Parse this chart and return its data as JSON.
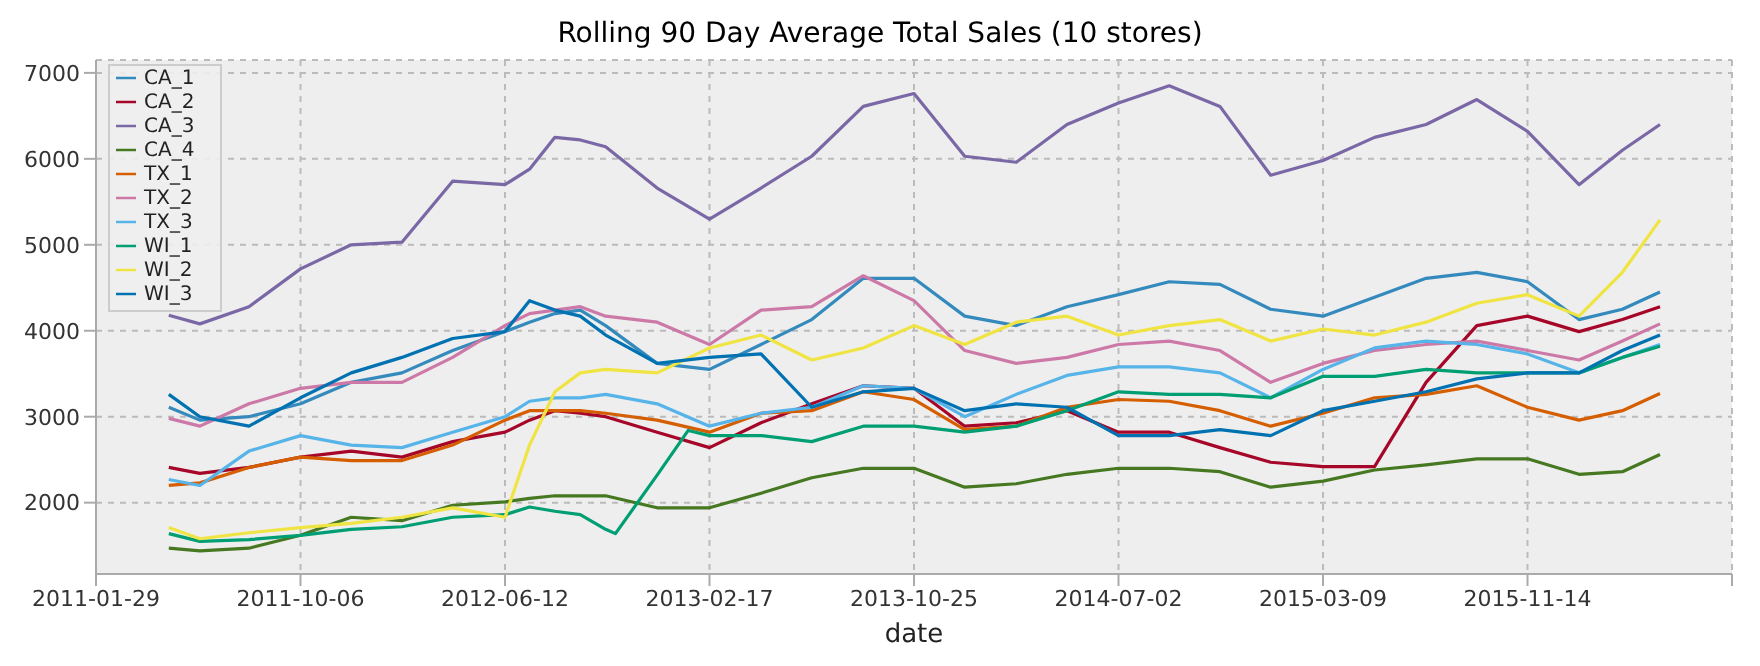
{
  "chart_data": {
    "type": "line",
    "title": "Rolling 90 Day Average Total Sales (10 stores)",
    "xlabel": "date",
    "x": [
      "2011-04-28",
      "2011-06-05",
      "2011-08-04",
      "2011-10-06",
      "2011-12-07",
      "2012-02-07",
      "2012-04-09",
      "2012-06-12",
      "2012-07-12",
      "2012-08-12",
      "2012-09-12",
      "2012-10-13",
      "2012-12-15",
      "2013-02-17",
      "2013-04-21",
      "2013-06-22",
      "2013-08-24",
      "2013-10-25",
      "2013-12-26",
      "2014-02-27",
      "2014-04-30",
      "2014-07-02",
      "2014-09-02",
      "2014-11-03",
      "2015-01-04",
      "2015-03-09",
      "2015-05-11",
      "2015-07-13",
      "2015-09-13",
      "2015-11-14",
      "2016-01-16",
      "2016-03-09",
      "2016-04-24"
    ],
    "series": [
      {
        "name": "CA_1",
        "color": "#348abd",
        "values": [
          3110,
          2960,
          3000,
          3150,
          3400,
          3510,
          3770,
          3990,
          4100,
          4200,
          4240,
          4060,
          3620,
          3550,
          3840,
          4130,
          4610,
          4610,
          4170,
          4060,
          4280,
          4420,
          4570,
          4540,
          4250,
          4170,
          4390,
          4610,
          4680,
          4570,
          4130,
          4250,
          4450
        ]
      },
      {
        "name": "CA_2",
        "color": "#a60628",
        "values": [
          2410,
          2340,
          2410,
          2530,
          2600,
          2530,
          2710,
          2820,
          2960,
          3070,
          3040,
          3000,
          2820,
          2640,
          2930,
          3150,
          3360,
          3330,
          2890,
          2930,
          3070,
          2820,
          2820,
          2640,
          2470,
          2420,
          2420,
          3400,
          4060,
          4170,
          3990,
          4130,
          4280
        ]
      },
      {
        "name": "CA_3",
        "color": "#7a68a6",
        "values": [
          4180,
          4080,
          4280,
          4720,
          5000,
          5030,
          5740,
          5700,
          5880,
          6250,
          6220,
          6140,
          5660,
          5300,
          5660,
          6030,
          6610,
          6760,
          6030,
          5960,
          6400,
          6650,
          6850,
          6610,
          5810,
          5980,
          6250,
          6400,
          6690,
          6320,
          5700,
          6100,
          6400
        ]
      },
      {
        "name": "CA_4",
        "color": "#467821",
        "values": [
          1470,
          1440,
          1470,
          1620,
          1830,
          1790,
          1970,
          2010,
          2050,
          2080,
          2080,
          2080,
          1940,
          1940,
          2110,
          2290,
          2400,
          2400,
          2180,
          2220,
          2330,
          2400,
          2400,
          2360,
          2180,
          2250,
          2380,
          2440,
          2510,
          2510,
          2330,
          2360,
          2560
        ]
      },
      {
        "name": "TX_1",
        "color": "#d55e00",
        "values": [
          2200,
          2230,
          2410,
          2530,
          2490,
          2490,
          2670,
          2960,
          3070,
          3070,
          3070,
          3040,
          2960,
          2820,
          3040,
          3070,
          3290,
          3200,
          2850,
          2890,
          3110,
          3200,
          3180,
          3070,
          2890,
          3040,
          3220,
          3260,
          3360,
          3110,
          2960,
          3070,
          3270
        ]
      },
      {
        "name": "TX_2",
        "color": "#cc79a7",
        "values": [
          2980,
          2890,
          3150,
          3330,
          3400,
          3400,
          3690,
          4060,
          4200,
          4240,
          4280,
          4170,
          4100,
          3840,
          4240,
          4280,
          4640,
          4350,
          3770,
          3620,
          3690,
          3840,
          3880,
          3770,
          3400,
          3620,
          3770,
          3840,
          3880,
          3770,
          3660,
          3880,
          4080
        ]
      },
      {
        "name": "TX_3",
        "color": "#56b4e9",
        "values": [
          2270,
          2200,
          2600,
          2780,
          2670,
          2640,
          2820,
          3000,
          3180,
          3220,
          3220,
          3260,
          3150,
          2890,
          3040,
          3110,
          3360,
          3330,
          3000,
          3260,
          3480,
          3580,
          3580,
          3510,
          3220,
          3550,
          3800,
          3880,
          3840,
          3730,
          3510,
          3690,
          3840
        ]
      },
      {
        "name": "WI_1",
        "color": "#009e73",
        "x": [
          "2011-04-28",
          "2011-06-05",
          "2011-08-04",
          "2011-10-06",
          "2011-12-07",
          "2012-02-07",
          "2012-04-09",
          "2012-06-12",
          "2012-07-12",
          "2012-08-12",
          "2012-09-12",
          "2012-10-13",
          "2012-10-25",
          "2012-12-15",
          "2013-01-22",
          "2013-02-17",
          "2013-04-21",
          "2013-06-22",
          "2013-08-24",
          "2013-10-25",
          "2013-12-26",
          "2014-02-27",
          "2014-04-30",
          "2014-07-02",
          "2014-09-02",
          "2014-11-03",
          "2015-01-04",
          "2015-03-09",
          "2015-05-11",
          "2015-07-13",
          "2015-09-13",
          "2015-11-14",
          "2016-01-16",
          "2016-03-09",
          "2016-04-24"
        ],
        "values": [
          1640,
          1550,
          1570,
          1620,
          1690,
          1720,
          1830,
          1860,
          1950,
          1900,
          1860,
          1690,
          1640,
          2320,
          2840,
          2780,
          2780,
          2710,
          2890,
          2890,
          2820,
          2890,
          3070,
          3290,
          3260,
          3260,
          3220,
          3470,
          3470,
          3550,
          3510,
          3510,
          3510,
          3690,
          3820
        ]
      },
      {
        "name": "WI_2",
        "color": "#f0e442",
        "values": [
          1710,
          1580,
          1650,
          1710,
          1760,
          1830,
          1940,
          1830,
          2670,
          3290,
          3510,
          3550,
          3510,
          3800,
          3950,
          3660,
          3800,
          4060,
          3840,
          4100,
          4170,
          3950,
          4060,
          4130,
          3880,
          4020,
          3950,
          4100,
          4320,
          4420,
          4170,
          4680,
          5290
        ]
      },
      {
        "name": "WI_3",
        "color": "#0072b2",
        "values": [
          3260,
          3000,
          2890,
          3220,
          3510,
          3690,
          3910,
          3990,
          4350,
          4240,
          4170,
          3950,
          3620,
          3690,
          3730,
          3110,
          3290,
          3330,
          3070,
          3150,
          3110,
          2780,
          2780,
          2850,
          2780,
          3070,
          3180,
          3290,
          3440,
          3510,
          3510,
          3770,
          3950
        ]
      }
    ],
    "xlim": [
      "2011-01-29",
      "2016-07-21"
    ],
    "xticks": [
      {
        "value": "2011-01-29",
        "label": "2011-01-29"
      },
      {
        "value": "2011-10-06",
        "label": "2011-10-06"
      },
      {
        "value": "2012-06-12",
        "label": "2012-06-12"
      },
      {
        "value": "2013-02-17",
        "label": "2013-02-17"
      },
      {
        "value": "2013-10-25",
        "label": "2013-10-25"
      },
      {
        "value": "2014-07-02",
        "label": "2014-07-02"
      },
      {
        "value": "2015-03-09",
        "label": "2015-03-09"
      },
      {
        "value": "2015-11-14",
        "label": "2015-11-14"
      },
      {
        "value": "2016-07-21",
        "label": null
      }
    ],
    "ylim": [
      1170,
      7150
    ],
    "yticks": [
      2000,
      3000,
      4000,
      5000,
      6000,
      7000
    ],
    "grid": true,
    "legend": "top left",
    "marker": "none",
    "line_style": "solid"
  }
}
